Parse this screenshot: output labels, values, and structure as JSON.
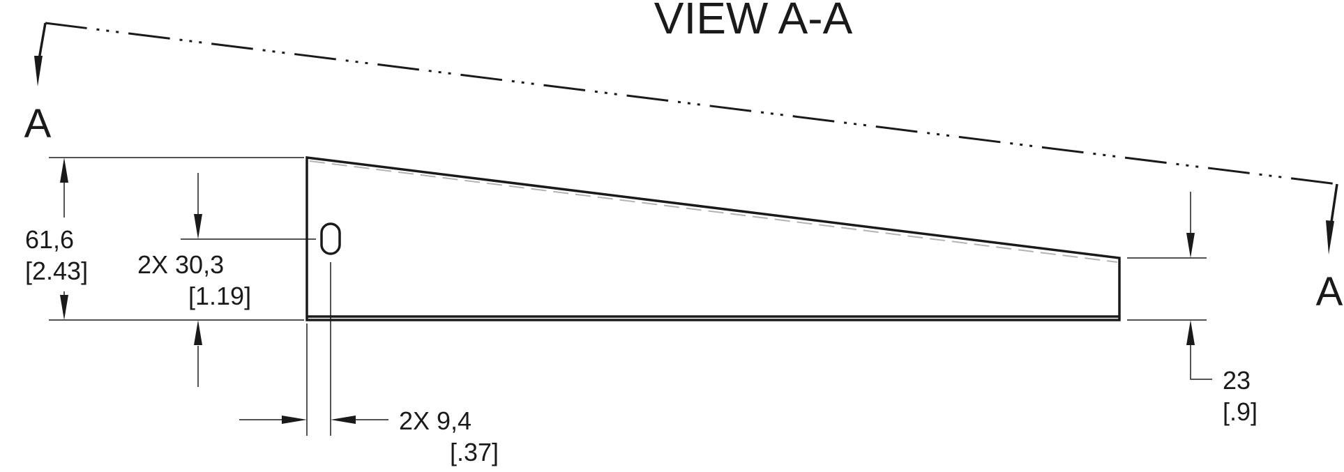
{
  "view_title": "VIEW A-A",
  "section_labels": {
    "left": "A",
    "right": "A"
  },
  "dimensions": {
    "overall_height": {
      "metric": "61,6",
      "imperial": "[2.43]"
    },
    "slot_height": {
      "metric": "2X 30,3",
      "imperial": "[1.19]"
    },
    "slot_width": {
      "metric": "2X 9,4",
      "imperial": "[.37]"
    },
    "end_height": {
      "metric": "23",
      "imperial": "[.9]"
    }
  }
}
